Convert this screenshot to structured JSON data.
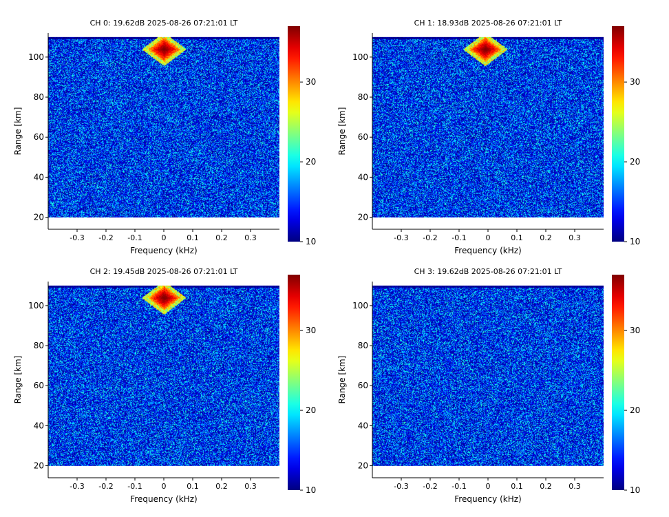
{
  "chart_data": [
    {
      "type": "heatmap",
      "title": "CH 0: 19.62dB 2025-08-26 07:21:01 LT",
      "xlabel": "Frequency (kHz)",
      "ylabel": "Range [km]",
      "xlim": [
        -0.4,
        0.4
      ],
      "ylim": [
        14,
        112
      ],
      "data_range": {
        "range_km": [
          20,
          110
        ]
      },
      "x_ticks": [
        -0.3,
        -0.2,
        -0.1,
        0,
        0.1,
        0.2,
        0.3
      ],
      "x_tick_labels": [
        "-0.3",
        "-0.2",
        "-0.1",
        "0",
        "0.1",
        "0.2",
        "0.3"
      ],
      "y_ticks": [
        20,
        40,
        60,
        80,
        100
      ],
      "y_tick_labels": [
        "20",
        "40",
        "60",
        "80",
        "100"
      ],
      "colorbar": {
        "range": [
          10,
          37
        ],
        "ticks": [
          10,
          20,
          30
        ],
        "tick_labels": [
          "10",
          "20",
          "30"
        ],
        "colormap": "jet"
      },
      "echo": {
        "present": true,
        "center_freq_khz": 0.0,
        "center_range_km": 104,
        "peak_value": 37
      }
    },
    {
      "type": "heatmap",
      "title": "CH 1: 18.93dB 2025-08-26 07:21:01 LT",
      "xlabel": "Frequency (kHz)",
      "ylabel": "Range [km]",
      "xlim": [
        -0.4,
        0.4
      ],
      "ylim": [
        14,
        112
      ],
      "data_range": {
        "range_km": [
          20,
          110
        ]
      },
      "x_ticks": [
        -0.3,
        -0.2,
        -0.1,
        0,
        0.1,
        0.2,
        0.3
      ],
      "x_tick_labels": [
        "-0.3",
        "-0.2",
        "-0.1",
        "0",
        "0.1",
        "0.2",
        "0.3"
      ],
      "y_ticks": [
        20,
        40,
        60,
        80,
        100
      ],
      "y_tick_labels": [
        "20",
        "40",
        "60",
        "80",
        "100"
      ],
      "colorbar": {
        "range": [
          10,
          37
        ],
        "ticks": [
          10,
          20,
          30
        ],
        "tick_labels": [
          "10",
          "20",
          "30"
        ],
        "colormap": "jet"
      },
      "echo": {
        "present": true,
        "center_freq_khz": -0.01,
        "center_range_km": 104,
        "peak_value": 37
      }
    },
    {
      "type": "heatmap",
      "title": "CH 2: 19.45dB 2025-08-26 07:21:01 LT",
      "xlabel": "Frequency (kHz)",
      "ylabel": "Range [km]",
      "xlim": [
        -0.4,
        0.4
      ],
      "ylim": [
        14,
        112
      ],
      "data_range": {
        "range_km": [
          20,
          110
        ]
      },
      "x_ticks": [
        -0.3,
        -0.2,
        -0.1,
        0,
        0.1,
        0.2,
        0.3
      ],
      "x_tick_labels": [
        "-0.3",
        "-0.2",
        "-0.1",
        "0",
        "0.1",
        "0.2",
        "0.3"
      ],
      "y_ticks": [
        20,
        40,
        60,
        80,
        100
      ],
      "y_tick_labels": [
        "20",
        "40",
        "60",
        "80",
        "100"
      ],
      "colorbar": {
        "range": [
          10,
          37
        ],
        "ticks": [
          10,
          20,
          30
        ],
        "tick_labels": [
          "10",
          "20",
          "30"
        ],
        "colormap": "jet"
      },
      "echo": {
        "present": true,
        "center_freq_khz": 0.0,
        "center_range_km": 104,
        "peak_value": 37
      }
    },
    {
      "type": "heatmap",
      "title": "CH 3: 19.62dB 2025-08-26 07:21:01 LT",
      "xlabel": "Frequency (kHz)",
      "ylabel": "Range [km]",
      "xlim": [
        -0.4,
        0.4
      ],
      "ylim": [
        14,
        112
      ],
      "data_range": {
        "range_km": [
          20,
          110
        ]
      },
      "x_ticks": [
        -0.3,
        -0.2,
        -0.1,
        0,
        0.1,
        0.2,
        0.3
      ],
      "x_tick_labels": [
        "-0.3",
        "-0.2",
        "-0.1",
        "0",
        "0.1",
        "0.2",
        "0.3"
      ],
      "y_ticks": [
        20,
        40,
        60,
        80,
        100
      ],
      "y_tick_labels": [
        "20",
        "40",
        "60",
        "80",
        "100"
      ],
      "colorbar": {
        "range": [
          10,
          37
        ],
        "ticks": [
          10,
          20,
          30
        ],
        "tick_labels": [
          "10",
          "20",
          "30"
        ],
        "colormap": "jet"
      },
      "echo": {
        "present": false
      }
    }
  ]
}
